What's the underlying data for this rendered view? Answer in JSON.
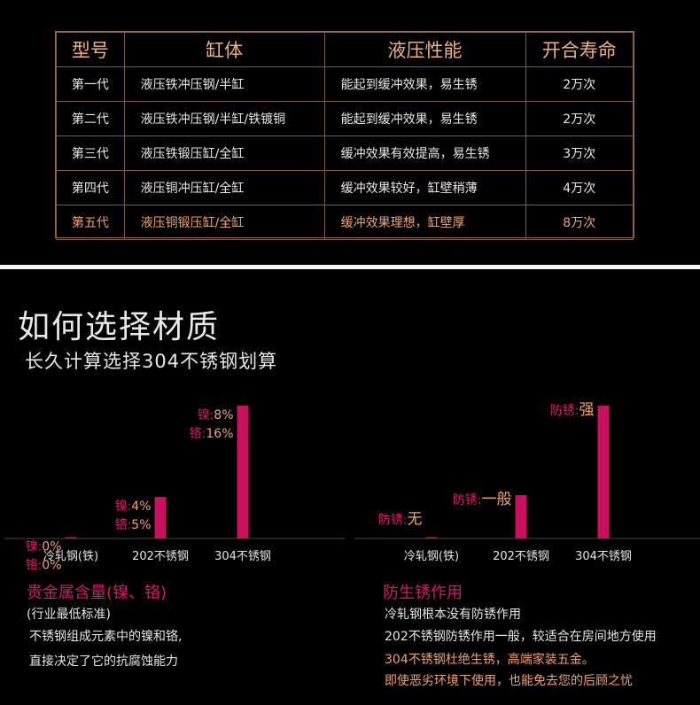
{
  "table": {
    "headers": [
      "型号",
      "缸体",
      "液压性能",
      "开合寿命"
    ],
    "rows": [
      [
        "第一代",
        "液压铁冲压钢/半缸",
        "能起到缓冲效果，易生锈",
        "2万次"
      ],
      [
        "第二代",
        "液压铁冲压钢/半缸/铁镀铜",
        "能起到缓冲效果，易生锈",
        "2万次"
      ],
      [
        "第三代",
        "液压铁锻压缸/全缸",
        "缓冲效果有效提高，易生锈",
        "3万次"
      ],
      [
        "第四代",
        "液压铜冲压缸/全缸",
        "缓冲效果较好，缸壁稍薄",
        "4万次"
      ],
      [
        "第五代",
        "液压铜锻压缸/全缸",
        "缓冲效果理想，缸壁厚",
        "8万次"
      ]
    ],
    "highlight_row": 4
  },
  "headings": {
    "title": "如何选择材质",
    "subtitle": "长久计算选择304不锈钢划算"
  },
  "chart_data": [
    {
      "type": "bar",
      "categories": [
        "冷轧钢(铁)",
        "202不锈钢",
        "304不锈钢"
      ],
      "series": [
        {
          "name": "镍",
          "values": [
            0,
            4,
            8
          ]
        },
        {
          "name": "铬",
          "values": [
            0,
            5,
            16
          ]
        }
      ],
      "bar_series": "铬",
      "labels": [
        {
          "nickel": "镍:",
          "nickel_val": "0%",
          "chrome": "铬:",
          "chrome_val": "0%"
        },
        {
          "nickel": "镍:",
          "nickel_val": "4%",
          "chrome": "铬:",
          "chrome_val": "5%"
        },
        {
          "nickel": "镍:",
          "nickel_val": "8%",
          "chrome": "铬:",
          "chrome_val": "16%"
        }
      ],
      "ylim": [
        0,
        16
      ],
      "bar_color": "#c8105e"
    },
    {
      "type": "bar",
      "categories": [
        "冷轧钢(铁)",
        "202不锈钢",
        "304不锈钢"
      ],
      "values": [
        0,
        1,
        3
      ],
      "labels": [
        {
          "prefix": "防锈:",
          "value": "无"
        },
        {
          "prefix": "防锈:",
          "value": "一般"
        },
        {
          "prefix": "防锈:",
          "value": "强"
        }
      ],
      "ylim": [
        0,
        3
      ],
      "bar_color": "#c8105e"
    }
  ],
  "left_text": {
    "title": "贵金属含量(镍、铬)",
    "note": "(行业最低标准)",
    "line1": "不锈钢组成元素中的镍和铬,",
    "line2": "直接决定了它的抗腐蚀能力"
  },
  "right_text": {
    "title": "防生锈作用",
    "line1": "冷轧钢根本没有防锈作用",
    "line2": "202不锈钢防锈作用一般，较适合在房间地方使用",
    "line3": "304不锈钢杜绝生锈，高端家装五金。",
    "line4": "即使恶劣环境下使用，也能免去您的后顾之忧"
  },
  "colors": {
    "accent": "#f0a36c",
    "bar": "#c8105e",
    "header_text": "#f0b27a",
    "label_pink": "#d6176a"
  }
}
